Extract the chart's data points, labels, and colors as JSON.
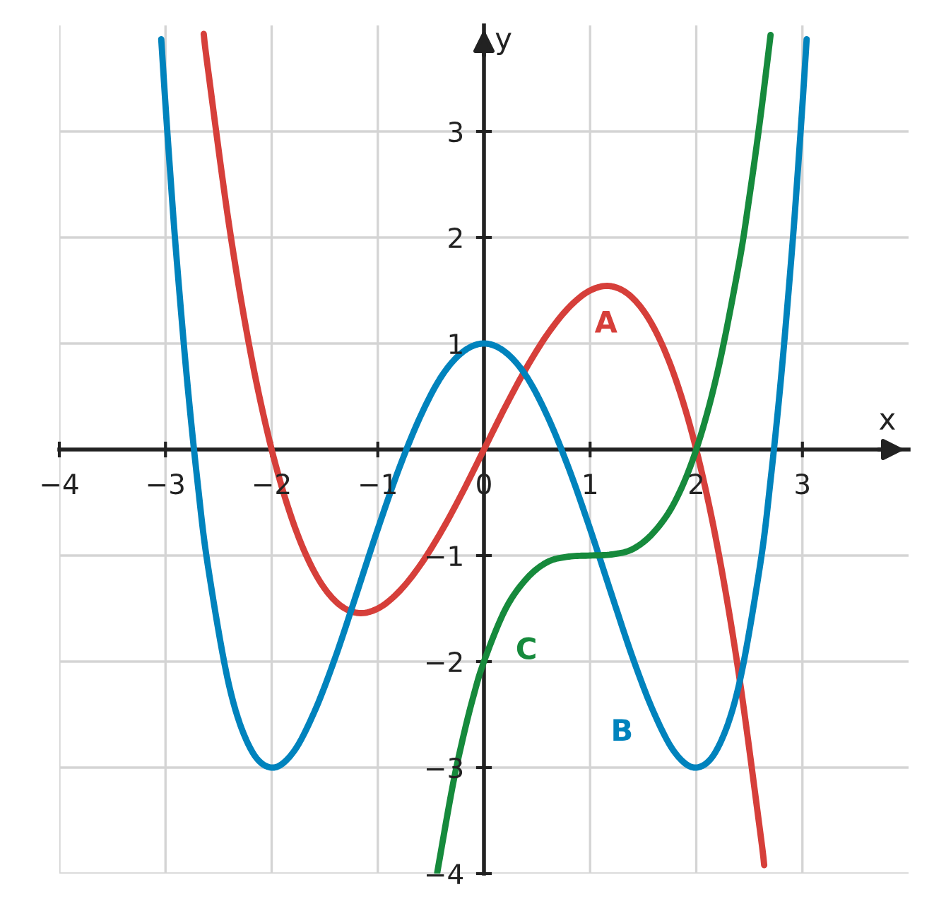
{
  "chart_data": {
    "type": "line",
    "xlabel": "x",
    "ylabel": "y",
    "xlim": [
      -4,
      4
    ],
    "ylim": [
      -4,
      4
    ],
    "xticks": [
      {
        "value": -4,
        "label": "−4"
      },
      {
        "value": -3,
        "label": "−3"
      },
      {
        "value": -2,
        "label": "−2"
      },
      {
        "value": -1,
        "label": "−1"
      },
      0,
      1,
      2,
      3
    ],
    "yticks": [
      {
        "value": -4,
        "label": "−4"
      },
      {
        "value": -3,
        "label": "−3"
      },
      {
        "value": -2,
        "label": "−2"
      },
      {
        "value": -1,
        "label": "−1"
      },
      1,
      2,
      3
    ],
    "grid": true,
    "legend": false,
    "marker": "none",
    "line_style": "solid",
    "series": [
      {
        "name": "A",
        "color": "#d63f3a",
        "x": [
          -2.64,
          -2.6,
          -2.4,
          -2.2,
          -2.0,
          -1.8,
          -1.6,
          -1.4,
          -1.2,
          -1.0,
          -0.8,
          -0.6,
          -0.4,
          -0.2,
          0,
          0.2,
          0.4,
          0.6,
          0.8,
          1.0,
          1.2,
          1.4,
          1.6,
          1.8,
          2.0,
          2.2,
          2.4,
          2.6,
          2.64
        ],
        "values": [
          3.92,
          3.59,
          2.11,
          0.92,
          0,
          -0.68,
          -1.15,
          -1.43,
          -1.54,
          -1.5,
          -1.34,
          -1.09,
          -0.77,
          -0.4,
          0,
          0.4,
          0.77,
          1.09,
          1.34,
          1.5,
          1.54,
          1.43,
          1.15,
          0.68,
          0,
          -0.92,
          -2.11,
          -3.59,
          -3.92
        ]
      },
      {
        "name": "B",
        "color": "#0083bd",
        "x": [
          -3.04,
          -3.0,
          -2.95,
          -2.9,
          -2.8,
          -2.7,
          -2.6,
          -2.4,
          -2.2,
          -2.0,
          -1.8,
          -1.6,
          -1.4,
          -1.2,
          -1.0,
          -0.8,
          -0.6,
          -0.4,
          -0.2,
          0,
          0.2,
          0.4,
          0.6,
          0.8,
          1.0,
          1.2,
          1.4,
          1.6,
          1.8,
          2.0,
          2.2,
          2.4,
          2.6,
          2.7,
          2.8,
          2.9,
          2.95,
          3.0,
          3.04
        ],
        "values": [
          3.87,
          3.25,
          2.53,
          1.86,
          0.69,
          -0.29,
          -1.1,
          -2.23,
          -2.82,
          -3,
          -2.86,
          -2.48,
          -1.96,
          -1.36,
          -0.75,
          -0.18,
          0.31,
          0.69,
          0.92,
          1,
          0.92,
          0.69,
          0.31,
          -0.18,
          -0.75,
          -1.36,
          -1.96,
          -2.48,
          -2.86,
          -3,
          -2.82,
          -2.23,
          -1.1,
          -0.29,
          0.69,
          1.86,
          2.53,
          3.25,
          3.87
        ]
      },
      {
        "name": "C",
        "color": "#168a3c",
        "x": [
          -0.44,
          -0.3,
          -0.2,
          -0.1,
          0,
          0.2,
          0.4,
          0.6,
          0.8,
          1.0,
          1.2,
          1.4,
          1.6,
          1.8,
          2.0,
          2.2,
          2.4,
          2.5,
          2.6,
          2.7
        ],
        "values": [
          -3.99,
          -3.2,
          -2.73,
          -2.33,
          -2,
          -1.51,
          -1.22,
          -1.06,
          -1.01,
          -1,
          -0.99,
          -0.94,
          -0.78,
          -0.49,
          0,
          0.73,
          1.74,
          2.38,
          3.1,
          3.91
        ]
      }
    ]
  }
}
